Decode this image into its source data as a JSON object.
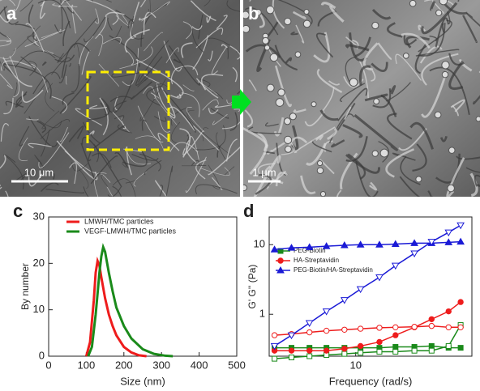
{
  "figure": {
    "panel_labels": [
      "a",
      "b",
      "c",
      "d"
    ],
    "scale_bars": [
      "10 μm",
      "1 μm"
    ]
  },
  "chart_data": [
    {
      "type": "line",
      "xlabel": "Size (nm)",
      "ylabel": "By number",
      "xlim": [
        0,
        500
      ],
      "xticks": [
        0,
        100,
        200,
        300,
        400,
        500
      ],
      "ylim": [
        0,
        30
      ],
      "yticks": [
        0,
        10,
        20,
        30
      ],
      "series": [
        {
          "name": "LMWH/TMC particles",
          "color": "#ee1c1c",
          "x": [
            100,
            110,
            120,
            125,
            130,
            135,
            140,
            150,
            160,
            170,
            180,
            200,
            220,
            240,
            260
          ],
          "values": [
            0,
            3,
            12,
            18,
            20.5,
            19.5,
            17,
            12.5,
            9,
            6.5,
            4.5,
            2,
            0.8,
            0.2,
            0
          ]
        },
        {
          "name": "VEGF-LMWH/TMC particles",
          "color": "#1a8a1a",
          "x": [
            105,
            115,
            125,
            135,
            140,
            145,
            150,
            160,
            170,
            180,
            200,
            220,
            250,
            280,
            310,
            330
          ],
          "values": [
            0,
            2,
            9,
            18,
            21.5,
            23.5,
            22.5,
            18,
            14,
            10.5,
            6.5,
            3.8,
            1.5,
            0.5,
            0.1,
            0
          ]
        }
      ]
    },
    {
      "type": "line",
      "xlabel": "Frequency (rad/s)",
      "ylabel": "G' G'' (Pa)",
      "xscale": "log",
      "yscale": "log",
      "xlim": [
        1.8,
        100
      ],
      "xticks": [
        10
      ],
      "ylim": [
        0.25,
        25
      ],
      "yticks": [
        1,
        10
      ],
      "x": [
        2,
        2.8,
        4,
        5.6,
        8,
        11,
        16,
        22,
        32,
        45,
        63,
        80
      ],
      "series": [
        {
          "name": "PEG-Biotin",
          "color": "#1a8a1a",
          "marker": "square",
          "values": [
            0.33,
            0.33,
            0.33,
            0.33,
            0.33,
            0.33,
            0.33,
            0.34,
            0.34,
            0.35,
            0.33,
            0.33
          ],
          "loss_values": [
            0.23,
            0.24,
            0.25,
            0.26,
            0.27,
            0.28,
            0.29,
            0.29,
            0.3,
            0.3,
            0.35,
            0.7
          ]
        },
        {
          "name": "HA-Streptavidin",
          "color": "#ee1c1c",
          "marker": "circle",
          "values": [
            0.3,
            0.3,
            0.3,
            0.3,
            0.32,
            0.35,
            0.4,
            0.5,
            0.65,
            0.85,
            1.1,
            1.5
          ],
          "loss_values": [
            0.5,
            0.52,
            0.55,
            0.58,
            0.6,
            0.62,
            0.64,
            0.65,
            0.66,
            0.68,
            0.65,
            0.65
          ]
        },
        {
          "name": "PEG-Biotin/HA-Streptavidin",
          "color": "#1a1ad6",
          "marker": "triangle",
          "values": [
            8.5,
            9,
            9.2,
            9.5,
            9.8,
            10,
            10,
            10.2,
            10.5,
            10.5,
            10.8,
            11
          ],
          "loss_values": [
            0.35,
            0.5,
            0.75,
            1.1,
            1.6,
            2.3,
            3.4,
            5,
            7.5,
            11,
            15,
            19
          ]
        }
      ]
    }
  ]
}
